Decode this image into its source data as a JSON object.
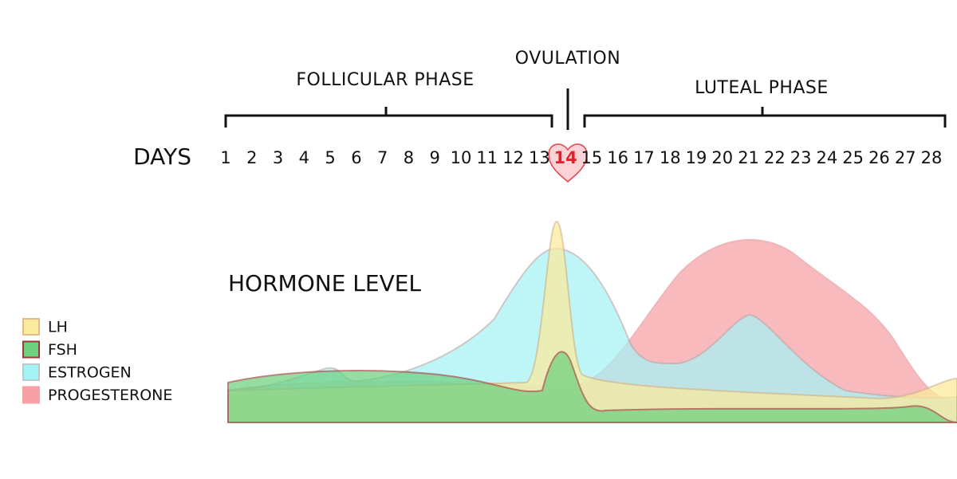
{
  "phases": {
    "follicular": "FOLLICULAR PHASE",
    "ovulation": "OVULATION",
    "luteal": "LUTEAL PHASE"
  },
  "days_label": "DAYS",
  "days": [
    1,
    2,
    3,
    4,
    5,
    6,
    7,
    8,
    9,
    10,
    11,
    12,
    13,
    14,
    15,
    16,
    17,
    18,
    19,
    20,
    21,
    22,
    23,
    24,
    25,
    26,
    27,
    28
  ],
  "ovulation_day": 14,
  "chart": {
    "title": "HORMONE LEVEL"
  },
  "legend": [
    {
      "name": "LH",
      "color": "#fbeb9c",
      "border": "#e8b98a"
    },
    {
      "name": "FSH",
      "color": "#6fd07f",
      "border": "#9b3a3a"
    },
    {
      "name": "ESTROGEN",
      "color": "#a6f3f6",
      "border": "#b9c9cc"
    },
    {
      "name": "PROGESTERONE",
      "color": "#f7a0a6",
      "border": "#f7a0a6"
    }
  ]
}
